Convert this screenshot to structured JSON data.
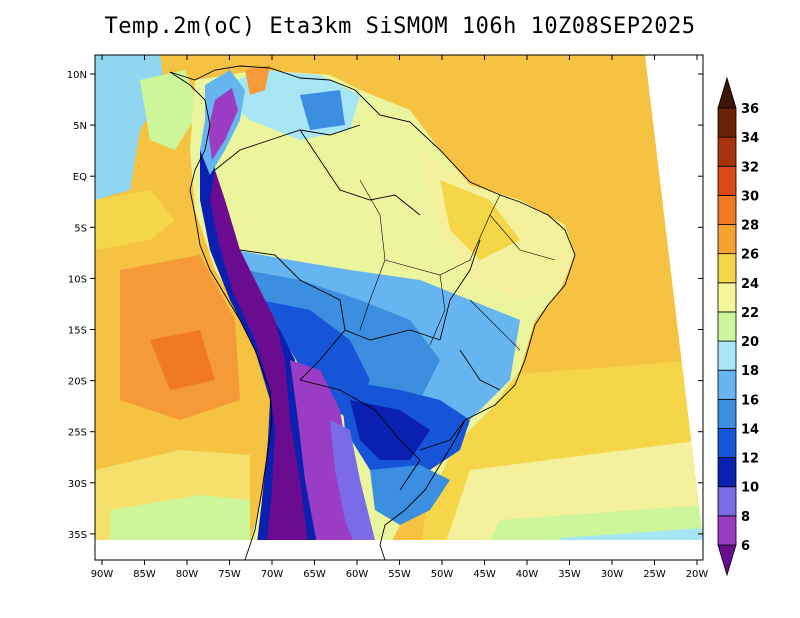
{
  "title": "Temp.2m(oC) Eta3km SiSMOM 106h 10Z08SEP2025",
  "lat_labels": [
    "10N",
    "5N",
    "EQ",
    "5S",
    "10S",
    "15S",
    "20S",
    "25S",
    "30S",
    "35S"
  ],
  "lon_labels": [
    "90W",
    "85W",
    "80W",
    "75W",
    "70W",
    "65W",
    "60W",
    "55W",
    "50W",
    "45W",
    "40W",
    "35W",
    "30W",
    "25W",
    "20W"
  ],
  "colorbar": {
    "levels": [
      6,
      8,
      10,
      12,
      14,
      16,
      18,
      20,
      22,
      24,
      26,
      28,
      30,
      32,
      34,
      36
    ],
    "labels": [
      "6",
      "8",
      "10",
      "12",
      "14",
      "16",
      "18",
      "20",
      "22",
      "24",
      "26",
      "28",
      "30",
      "32",
      "34",
      "36"
    ],
    "colors": [
      "#6b0b8f",
      "#9a3dc4",
      "#7b6be8",
      "#0a20b0",
      "#1655d8",
      "#3b8ee0",
      "#66b5f0",
      "#a8e6f5",
      "#cdf59a",
      "#f5f59c",
      "#f5d648",
      "#f5a330",
      "#f07a22",
      "#d94a14",
      "#a8320c",
      "#6a2308",
      "#3d1505"
    ]
  },
  "colors": {
    "ocean_north": "#f5bf3c",
    "ocean_south": "#f5d648",
    "pacific_warm": "#f59a38",
    "amazon": "#eaf59e",
    "central_cool": "#3b8ee0",
    "andes": "#6b0b8f",
    "south_cool": "#9a3dc4",
    "border": "#000000"
  }
}
